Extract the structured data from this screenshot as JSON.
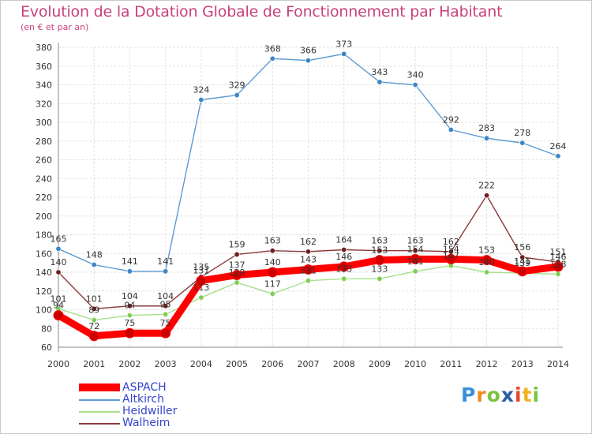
{
  "title": "Evolution de la Dotation Globale de Fonctionnement par Habitant",
  "subtitle": "(en € et par an)",
  "brand": "Proxiti",
  "chart_data": {
    "type": "line",
    "x": [
      2000,
      2001,
      2002,
      2003,
      2004,
      2005,
      2006,
      2007,
      2008,
      2009,
      2010,
      2011,
      2012,
      2013,
      2014
    ],
    "ylim": [
      60,
      380
    ],
    "yticks": [
      60,
      80,
      100,
      120,
      140,
      160,
      180,
      200,
      220,
      240,
      260,
      280,
      300,
      320,
      340,
      360,
      380
    ],
    "grid": true,
    "legend_position": "bottom-left",
    "series": [
      {
        "name": "ASPACH",
        "color": "#ff0000",
        "marker": "#cc0000",
        "values": [
          94,
          72,
          75,
          75,
          131,
          137,
          140,
          143,
          146,
          153,
          154,
          154,
          153,
          141,
          146
        ]
      },
      {
        "name": "Altkirch",
        "color": "#5b9bd5",
        "marker": "#3d85c6",
        "values": [
          165,
          148,
          141,
          141,
          324,
          329,
          368,
          366,
          373,
          343,
          340,
          292,
          283,
          278,
          264
        ]
      },
      {
        "name": "Heidwiller",
        "color": "#a6e08c",
        "marker": "#7dce52",
        "values": [
          101,
          89,
          94,
          95,
          113,
          129,
          117,
          131,
          133,
          133,
          141,
          147,
          140,
          139,
          138
        ]
      },
      {
        "name": "Walheim",
        "color": "#8b3a3a",
        "marker": "#6e1e1e",
        "values": [
          140,
          101,
          104,
          104,
          135,
          159,
          163,
          162,
          164,
          163,
          163,
          162,
          222,
          156,
          151
        ]
      }
    ]
  }
}
